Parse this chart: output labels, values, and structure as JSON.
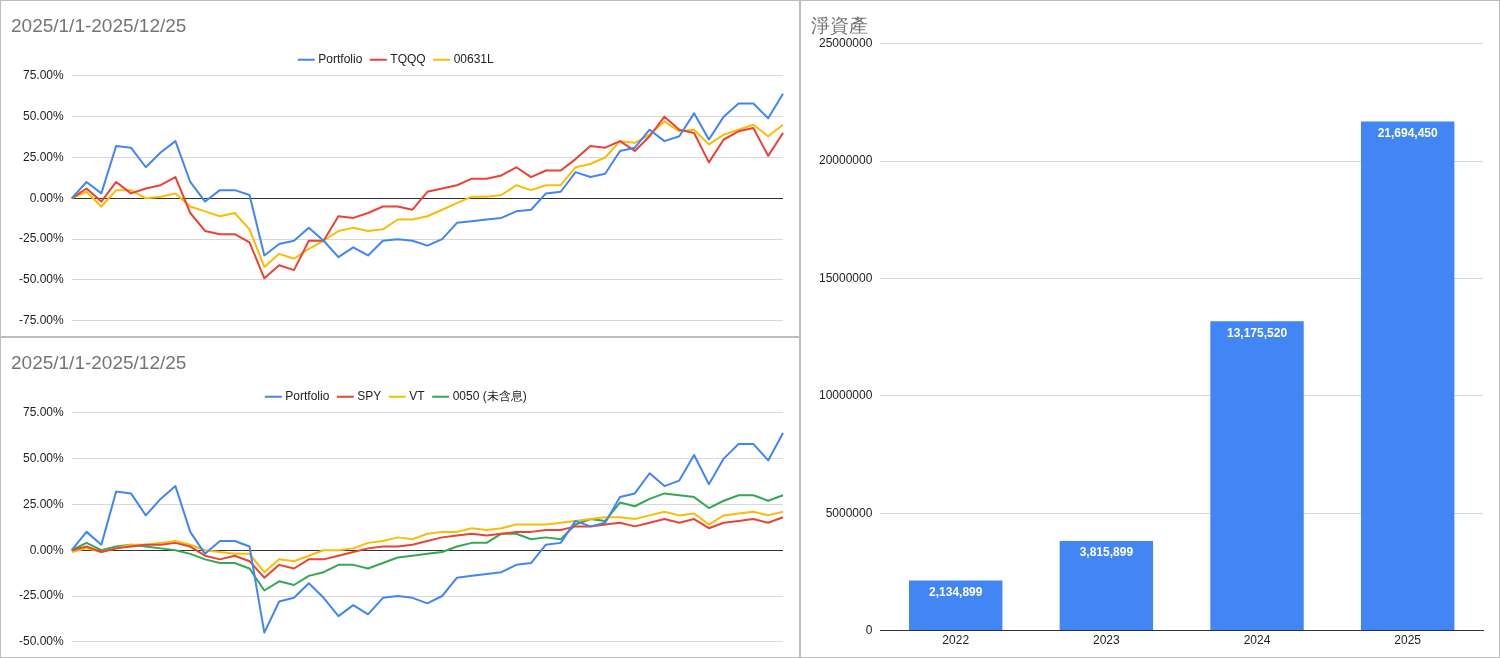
{
  "chart_data": [
    {
      "type": "line",
      "title": "2025/1/1-2025/12/25",
      "categories": [
        null,
        null,
        null,
        null,
        null,
        null,
        null,
        null,
        null,
        null,
        null,
        null,
        null,
        null,
        null,
        null,
        null,
        null,
        null,
        null,
        null,
        null,
        null,
        null,
        null,
        null,
        null,
        null,
        null,
        null,
        null,
        null,
        null,
        null,
        null,
        null,
        null,
        null,
        null,
        null,
        null,
        null,
        null,
        null,
        null,
        null,
        null,
        null,
        null
      ],
      "tick_labels": "y",
      "legend": "top",
      "grid": "y",
      "marker": "none",
      "ylim": [
        -75,
        75
      ],
      "yticks": [
        {
          "value": -75,
          "label": "-75.00%"
        },
        {
          "value": -50,
          "label": "-50.00%"
        },
        {
          "value": -25,
          "label": "-25.00%"
        },
        {
          "value": 0,
          "label": "0.00%"
        },
        {
          "value": 25,
          "label": "25.00%"
        },
        {
          "value": 50,
          "label": "50.00%"
        },
        {
          "value": 75,
          "label": "75.00%"
        }
      ],
      "series": [
        {
          "name": "Portfolio",
          "color": "#4285f4",
          "values": [
            0,
            10,
            3,
            32,
            31,
            19,
            28,
            35,
            10,
            -2,
            5,
            5,
            2,
            -35,
            -28,
            -26,
            -18,
            -26,
            -36,
            -30,
            -35,
            -26,
            -25,
            -26,
            -29,
            -25,
            -15,
            -14,
            -13,
            -12,
            -8,
            -7,
            3,
            4,
            16,
            13,
            15,
            29,
            31,
            42,
            35,
            38,
            52,
            36,
            50,
            58,
            58,
            49,
            64
          ]
        },
        {
          "name": "TQQQ",
          "color": "#ea4335",
          "values": [
            0,
            6,
            -2,
            10,
            3,
            6,
            8,
            13,
            -9,
            -20,
            -22,
            -22,
            -27,
            -49,
            -41,
            -44,
            -26,
            -26,
            -11,
            -12,
            -9,
            -5,
            -5,
            -7,
            4,
            6,
            8,
            12,
            12,
            14,
            19,
            13,
            17,
            17,
            24,
            32,
            31,
            35,
            29,
            38,
            50,
            42,
            40,
            22,
            36,
            41,
            43,
            26,
            40
          ]
        },
        {
          "name": "00631L",
          "color": "#fbbc04",
          "values": [
            0,
            4,
            -5,
            5,
            5,
            0,
            1,
            3,
            -5,
            -8,
            -11,
            -9,
            -19,
            -42,
            -34,
            -37,
            -31,
            -26,
            -20,
            -18,
            -20,
            -19,
            -13,
            -13,
            -11,
            -7,
            -3,
            1,
            1,
            2,
            8,
            5,
            8,
            8,
            19,
            21,
            25,
            35,
            34,
            39,
            47,
            41,
            42,
            33,
            39,
            42,
            45,
            38,
            45
          ]
        }
      ]
    },
    {
      "type": "line",
      "title": "2025/1/1-2025/12/25",
      "categories": [
        null,
        null,
        null,
        null,
        null,
        null,
        null,
        null,
        null,
        null,
        null,
        null,
        null,
        null,
        null,
        null,
        null,
        null,
        null,
        null,
        null,
        null,
        null,
        null,
        null,
        null,
        null,
        null,
        null,
        null,
        null,
        null,
        null,
        null,
        null,
        null,
        null,
        null,
        null,
        null,
        null,
        null,
        null,
        null,
        null,
        null,
        null,
        null,
        null
      ],
      "tick_labels": "y",
      "legend": "top",
      "grid": "y",
      "marker": "none",
      "ylim": [
        -50,
        75
      ],
      "yticks": [
        {
          "value": -50,
          "label": "-50.00%"
        },
        {
          "value": -25,
          "label": "-25.00%"
        },
        {
          "value": 0,
          "label": "0.00%"
        },
        {
          "value": 25,
          "label": "25.00%"
        },
        {
          "value": 50,
          "label": "50.00%"
        },
        {
          "value": 75,
          "label": "75.00%"
        }
      ],
      "series": [
        {
          "name": "Portfolio",
          "color": "#4285f4",
          "values": [
            0,
            10,
            3,
            32,
            31,
            19,
            28,
            35,
            10,
            -2,
            5,
            5,
            2,
            -45,
            -28,
            -26,
            -18,
            -26,
            -36,
            -30,
            -35,
            -26,
            -25,
            -26,
            -29,
            -25,
            -15,
            -14,
            -13,
            -12,
            -8,
            -7,
            3,
            4,
            16,
            13,
            15,
            29,
            31,
            42,
            35,
            38,
            52,
            36,
            50,
            58,
            58,
            49,
            64
          ]
        },
        {
          "name": "SPY",
          "color": "#ea4335",
          "values": [
            0,
            2,
            -1,
            1,
            2,
            3,
            3,
            4,
            2,
            -3,
            -5,
            -3,
            -6,
            -15,
            -8,
            -10,
            -5,
            -5,
            -3,
            -1,
            1,
            2,
            2,
            3,
            5,
            7,
            8,
            9,
            8,
            9,
            10,
            10,
            11,
            11,
            13,
            13,
            14,
            15,
            13,
            15,
            17,
            15,
            17,
            12,
            15,
            16,
            17,
            15,
            18
          ]
        },
        {
          "name": "VT",
          "color": "#fbbc04",
          "values": [
            -1,
            1,
            -1,
            1,
            3,
            3,
            4,
            5,
            3,
            0,
            -1,
            -2,
            -2,
            -12,
            -5,
            -6,
            -3,
            0,
            0,
            1,
            4,
            5,
            7,
            6,
            9,
            10,
            10,
            12,
            11,
            12,
            14,
            14,
            14,
            15,
            16,
            17,
            18,
            18,
            17,
            19,
            21,
            19,
            20,
            14,
            19,
            20,
            21,
            19,
            21
          ]
        },
        {
          "name": "0050 (未含息)",
          "color": "#34a853",
          "values": [
            0,
            4,
            0,
            2,
            3,
            2,
            1,
            0,
            -2,
            -5,
            -7,
            -7,
            -10,
            -22,
            -17,
            -19,
            -14,
            -12,
            -8,
            -8,
            -10,
            -7,
            -4,
            -3,
            -2,
            -1,
            2,
            4,
            4,
            9,
            9,
            6,
            7,
            6,
            14,
            17,
            16,
            26,
            24,
            28,
            31,
            30,
            29,
            23,
            27,
            30,
            30,
            27,
            30
          ]
        }
      ]
    },
    {
      "type": "bar",
      "title": "淨資產",
      "categories": [
        "2022",
        "2023",
        "2024",
        "2025"
      ],
      "grid": "y",
      "ylim": [
        0,
        25000000
      ],
      "yticks": [
        0,
        5000000,
        10000000,
        15000000,
        20000000,
        25000000
      ],
      "series": [
        {
          "color": "#4285f4",
          "values": [
            2134899,
            3815899,
            13175520,
            21694450
          ],
          "value_labels": [
            "2,134,899",
            "3,815,899",
            "13,175,520",
            "21,694,450"
          ]
        }
      ]
    }
  ]
}
